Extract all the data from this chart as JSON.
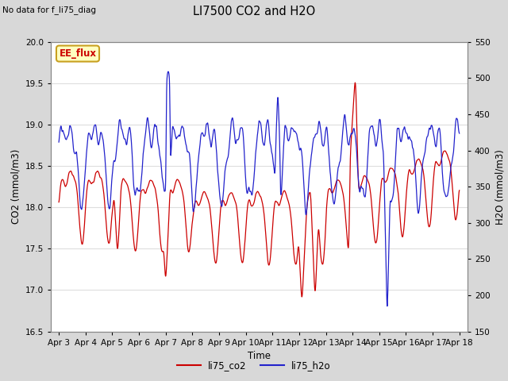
{
  "title": "LI7500 CO2 and H2O",
  "top_left_text": "No data for f_li75_diag",
  "xlabel": "Time",
  "ylabel_left": "CO2 (mmol/m3)",
  "ylabel_right": "H2O (mmol/m3)",
  "legend_labels": [
    "li75_co2",
    "li75_h2o"
  ],
  "legend_colors": [
    "#cc0000",
    "#2222cc"
  ],
  "co2_ylim": [
    16.5,
    20.0
  ],
  "h2o_ylim": [
    150,
    550
  ],
  "co2_yticks": [
    16.5,
    17.0,
    17.5,
    18.0,
    18.5,
    19.0,
    19.5,
    20.0
  ],
  "h2o_yticks": [
    150,
    200,
    250,
    300,
    350,
    400,
    450,
    500,
    550
  ],
  "x_tick_labels": [
    "Apr 3",
    "Apr 4",
    "Apr 5",
    "Apr 6",
    "Apr 7",
    "Apr 8",
    "Apr 9",
    "Apr 10",
    "Apr 11",
    "Apr 12",
    "Apr 13",
    "Apr 14",
    "Apr 15",
    "Apr 16",
    "Apr 17",
    "Apr 18"
  ],
  "fig_bg_color": "#d8d8d8",
  "plot_bg_color": "#ffffff",
  "grid_color": "#dddddd",
  "ee_flux_label": "EE_flux",
  "ee_flux_bg": "#ffffc0",
  "ee_flux_border": "#c8a020",
  "ee_flux_text_color": "#cc0000"
}
